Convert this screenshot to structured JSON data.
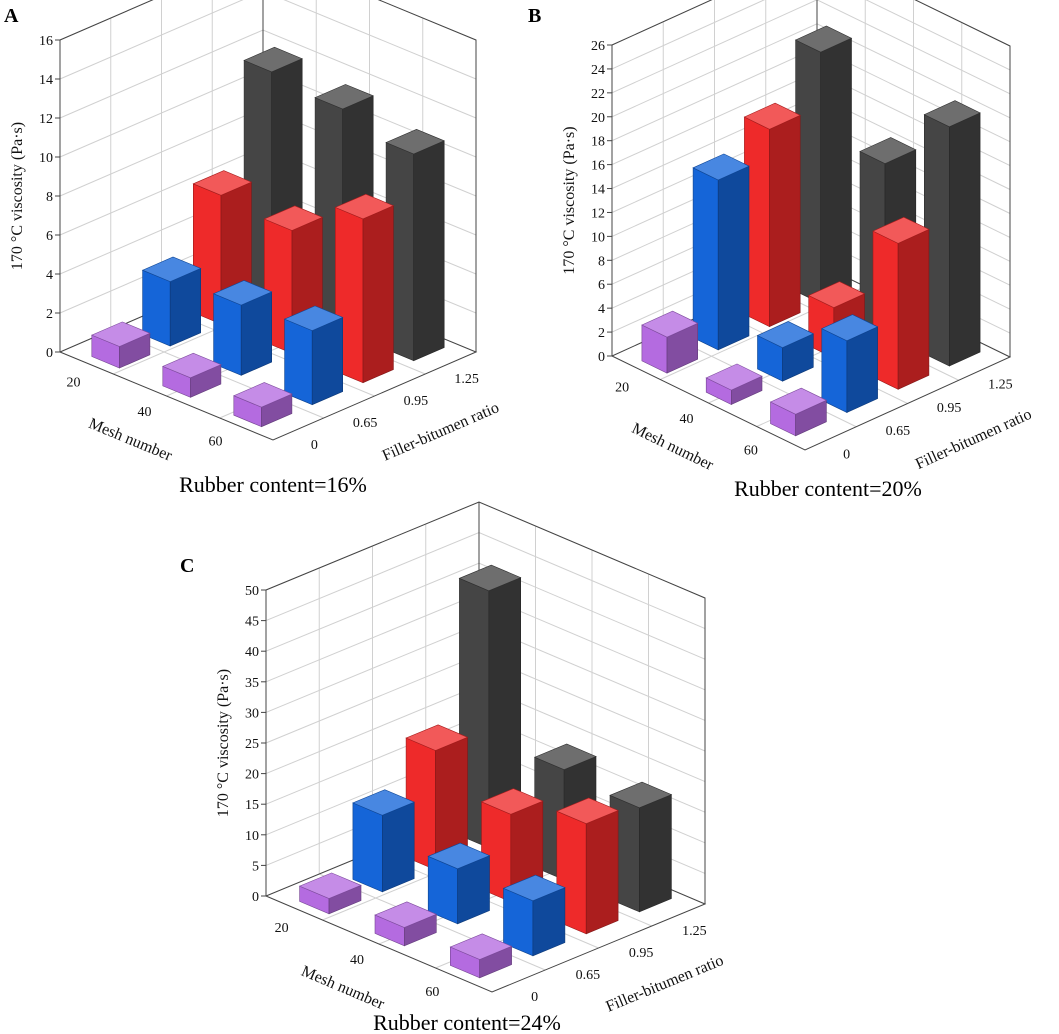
{
  "panels": [
    {
      "letter": "A",
      "caption": "Rubber content=16%",
      "zlabel": "170 °C viscosity (Pa·s)",
      "xlabel": "Mesh number",
      "ylabel": "Filler-bitumen ratio",
      "zticks": [
        "0",
        "2",
        "4",
        "6",
        "8",
        "10",
        "12",
        "14",
        "16"
      ],
      "xticks": [
        "20",
        "40",
        "60"
      ],
      "yticks": [
        "0",
        "0.65",
        "0.95",
        "1.25"
      ]
    },
    {
      "letter": "B",
      "caption": "Rubber content=20%",
      "zlabel": "170 °C viscosity (Pa·s)",
      "xlabel": "Mesh number",
      "ylabel": "Filler-bitumen ratio",
      "zticks": [
        "0",
        "2",
        "4",
        "6",
        "8",
        "10",
        "12",
        "14",
        "16",
        "18",
        "20",
        "22",
        "24",
        "26"
      ],
      "xticks": [
        "20",
        "40",
        "60"
      ],
      "yticks": [
        "0",
        "0.65",
        "0.95",
        "1.25"
      ]
    },
    {
      "letter": "C",
      "caption": "Rubber content=24%",
      "zlabel": "170 °C viscosity (Pa·s)",
      "xlabel": "Mesh number",
      "ylabel": "Filler-bitumen ratio",
      "zticks": [
        "0",
        "5",
        "10",
        "15",
        "20",
        "25",
        "30",
        "35",
        "40",
        "45",
        "50"
      ],
      "xticks": [
        "20",
        "40",
        "60"
      ],
      "yticks": [
        "0",
        "0.65",
        "0.95",
        "1.25"
      ]
    }
  ],
  "colors": {
    "0": "#b46be0",
    "0.65": "#1565d8",
    "0.95": "#ee2a2a",
    "1.25": "#454545"
  },
  "chart_data": [
    {
      "type": "bar3d",
      "title": "Rubber content=16%",
      "xlabel": "Mesh number",
      "ylabel": "Filler-bitumen ratio",
      "zlabel": "170 °C viscosity (Pa·s)",
      "categories": [
        "20",
        "40",
        "60"
      ],
      "zlim": [
        0,
        16
      ],
      "series": [
        {
          "name": "0",
          "values": [
            1.1,
            1.0,
            1.0
          ]
        },
        {
          "name": "0.65",
          "values": [
            3.3,
            3.6,
            3.8
          ]
        },
        {
          "name": "0.95",
          "values": [
            6.6,
            6.3,
            8.4
          ]
        },
        {
          "name": "1.25",
          "values": [
            11.8,
            11.4,
            10.6
          ]
        }
      ]
    },
    {
      "type": "bar3d",
      "title": "Rubber content=20%",
      "xlabel": "Mesh number",
      "ylabel": "Filler-bitumen ratio",
      "zlabel": "170 °C viscosity (Pa·s)",
      "categories": [
        "20",
        "40",
        "60"
      ],
      "zlim": [
        0,
        26
      ],
      "series": [
        {
          "name": "0",
          "values": [
            3.0,
            1.2,
            1.8
          ]
        },
        {
          "name": "0.65",
          "values": [
            14.2,
            2.8,
            6.0
          ]
        },
        {
          "name": "0.95",
          "values": [
            16.5,
            4.2,
            12.2
          ]
        },
        {
          "name": "1.25",
          "values": [
            21.0,
            14.3,
            20.0
          ]
        }
      ]
    },
    {
      "type": "bar3d",
      "title": "Rubber content=24%",
      "xlabel": "Mesh number",
      "ylabel": "Filler-bitumen ratio",
      "zlabel": "170 °C viscosity (Pa·s)",
      "categories": [
        "20",
        "40",
        "60"
      ],
      "zlim": [
        0,
        50
      ],
      "series": [
        {
          "name": "0",
          "values": [
            2.5,
            3.0,
            3.0
          ]
        },
        {
          "name": "0.65",
          "values": [
            12.5,
            9.0,
            9.0
          ]
        },
        {
          "name": "0.95",
          "values": [
            19.5,
            14.3,
            18.0
          ]
        },
        {
          "name": "1.25",
          "values": [
            42.0,
            18.0,
            17.0
          ]
        }
      ]
    }
  ]
}
